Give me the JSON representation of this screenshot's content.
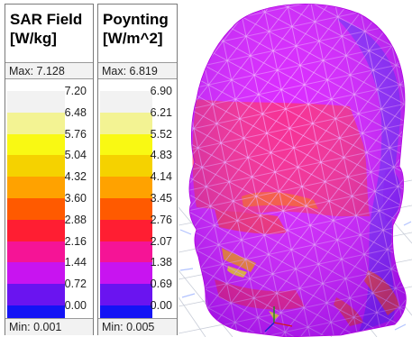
{
  "legends": [
    {
      "id": "sar",
      "title_line1": "SAR Field",
      "title_line2": "[W/kg]",
      "max_text": "Max: 7.128",
      "min_text": "Min: 0.001",
      "ticks": [
        "7.20",
        "6.48",
        "5.76",
        "5.04",
        "4.32",
        "3.60",
        "2.88",
        "2.16",
        "1.44",
        "0.72",
        "0.00"
      ]
    },
    {
      "id": "poynting",
      "title_line1": "Poynting",
      "title_line2": "[W/m^2]",
      "max_text": "Max: 6.819",
      "min_text": "Min: 0.005",
      "ticks": [
        "6.90",
        "6.21",
        "5.52",
        "4.83",
        "4.14",
        "3.45",
        "2.76",
        "2.07",
        "1.38",
        "0.69",
        "0.00"
      ]
    }
  ],
  "scale_colors": [
    "#f2f2f2",
    "#f3f393",
    "#f9f913",
    "#f5d200",
    "#ffa200",
    "#ff5a00",
    "#ff1e32",
    "#f51496",
    "#c814f0",
    "#6a14f0",
    "#1414f5"
  ],
  "viewport": {
    "background": "#ffffff",
    "mesh_color": "#e000ff",
    "hot_color": "#ff2a4a",
    "grid_color": "#c8cdd8"
  }
}
